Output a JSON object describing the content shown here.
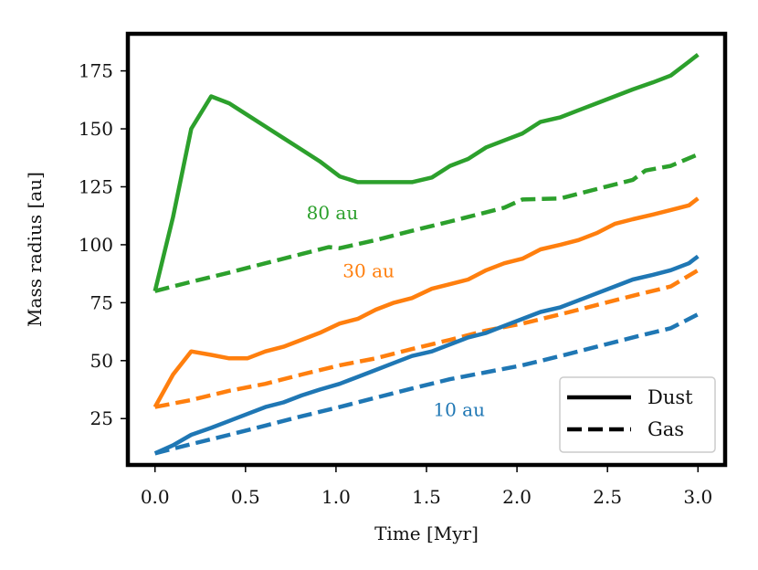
{
  "chart_data": {
    "type": "line",
    "title": "",
    "xlabel": "Time [Myr]",
    "ylabel": "Mass radius [au]",
    "xlim": [
      -0.15,
      3.15
    ],
    "ylim": [
      5,
      191
    ],
    "xticks": [
      0.0,
      0.5,
      1.0,
      1.5,
      2.0,
      2.5,
      3.0
    ],
    "xtick_labels": [
      "0.0",
      "0.5",
      "1.0",
      "1.5",
      "2.0",
      "2.5",
      "3.0"
    ],
    "yticks": [
      25,
      50,
      75,
      100,
      125,
      150,
      175
    ],
    "ytick_labels": [
      "25",
      "50",
      "75",
      "100",
      "125",
      "150",
      "175"
    ],
    "legend": {
      "placement": "lower-right",
      "entries": [
        {
          "label": "Dust",
          "style": "solid"
        },
        {
          "label": "Gas",
          "style": "dashed"
        }
      ]
    },
    "annotations": [
      {
        "text": "80 au",
        "x": 0.98,
        "y": 111,
        "color": "#2ca02c"
      },
      {
        "text": "30 au",
        "x": 1.18,
        "y": 86,
        "color": "#ff7f0e"
      },
      {
        "text": "10 au",
        "x": 1.68,
        "y": 26,
        "color": "#1f77b4"
      }
    ],
    "series": [
      {
        "name": "80 au Dust",
        "group": "80 au",
        "style": "solid",
        "color": "#2ca02c",
        "x": [
          0.0,
          0.1,
          0.2,
          0.31,
          0.41,
          0.51,
          0.61,
          0.71,
          0.81,
          0.91,
          1.02,
          1.12,
          1.22,
          1.32,
          1.42,
          1.53,
          1.63,
          1.73,
          1.83,
          1.93,
          2.03,
          2.13,
          2.24,
          2.34,
          2.44,
          2.54,
          2.64,
          2.75,
          2.85,
          2.95,
          3.0
        ],
        "y": [
          80,
          112,
          150,
          164,
          161,
          156,
          151,
          146,
          141,
          136,
          129.5,
          127,
          127,
          127,
          127,
          129,
          134,
          137,
          142,
          145,
          148,
          153,
          155,
          158,
          161,
          164,
          167,
          170,
          173,
          179,
          182
        ]
      },
      {
        "name": "80 au Gas",
        "group": "80 au",
        "style": "dashed",
        "color": "#2ca02c",
        "x": [
          0.0,
          0.2,
          0.41,
          0.61,
          0.81,
          0.96,
          1.02,
          1.22,
          1.42,
          1.63,
          1.83,
          1.93,
          2.03,
          2.24,
          2.44,
          2.64,
          2.71,
          2.85,
          3.0
        ],
        "y": [
          80,
          84,
          88,
          92,
          96,
          99,
          98.5,
          102,
          106,
          110,
          114,
          116,
          119.5,
          120,
          124,
          128,
          132,
          134,
          139
        ]
      },
      {
        "name": "30 au Dust",
        "group": "30 au",
        "style": "solid",
        "color": "#ff7f0e",
        "x": [
          0.0,
          0.1,
          0.2,
          0.31,
          0.41,
          0.51,
          0.61,
          0.71,
          0.81,
          0.91,
          1.02,
          1.12,
          1.22,
          1.32,
          1.42,
          1.53,
          1.63,
          1.73,
          1.83,
          1.93,
          2.03,
          2.13,
          2.24,
          2.34,
          2.44,
          2.54,
          2.64,
          2.75,
          2.85,
          2.95,
          3.0
        ],
        "y": [
          30,
          44,
          54,
          52.5,
          51,
          51,
          54,
          56,
          59,
          62,
          66,
          68,
          72,
          75,
          77,
          81,
          83,
          85,
          89,
          92,
          94,
          98,
          100,
          102,
          105,
          109,
          111,
          113,
          115,
          117,
          120
        ]
      },
      {
        "name": "30 au Gas",
        "group": "30 au",
        "style": "dashed",
        "color": "#ff7f0e",
        "x": [
          0.0,
          0.2,
          0.41,
          0.61,
          0.81,
          1.02,
          1.22,
          1.42,
          1.63,
          1.83,
          2.03,
          2.24,
          2.44,
          2.64,
          2.85,
          3.0
        ],
        "y": [
          30,
          33,
          37,
          40,
          44,
          48,
          51,
          55,
          59,
          63,
          66,
          70,
          74,
          78,
          82,
          89
        ]
      },
      {
        "name": "10 au Dust",
        "group": "10 au",
        "style": "solid",
        "color": "#1f77b4",
        "x": [
          0.0,
          0.1,
          0.2,
          0.31,
          0.41,
          0.51,
          0.61,
          0.71,
          0.81,
          0.91,
          1.02,
          1.12,
          1.22,
          1.32,
          1.42,
          1.53,
          1.63,
          1.73,
          1.83,
          1.93,
          2.03,
          2.13,
          2.24,
          2.34,
          2.44,
          2.54,
          2.64,
          2.75,
          2.85,
          2.95,
          3.0
        ],
        "y": [
          10,
          13.5,
          18,
          21,
          24,
          27,
          30,
          32,
          35,
          37.5,
          40,
          43,
          46,
          49,
          52,
          54,
          57,
          60,
          62,
          65,
          68,
          71,
          73,
          76,
          79,
          82,
          85,
          87,
          89,
          92,
          95
        ]
      },
      {
        "name": "10 au Gas",
        "group": "10 au",
        "style": "dashed",
        "color": "#1f77b4",
        "x": [
          0.0,
          0.2,
          0.41,
          0.61,
          0.81,
          1.02,
          1.22,
          1.42,
          1.63,
          1.83,
          2.03,
          2.24,
          2.44,
          2.64,
          2.85,
          3.0
        ],
        "y": [
          10,
          14,
          18,
          22,
          26,
          30,
          34,
          38,
          42,
          45,
          48,
          52,
          56,
          60,
          64,
          70
        ]
      }
    ]
  }
}
